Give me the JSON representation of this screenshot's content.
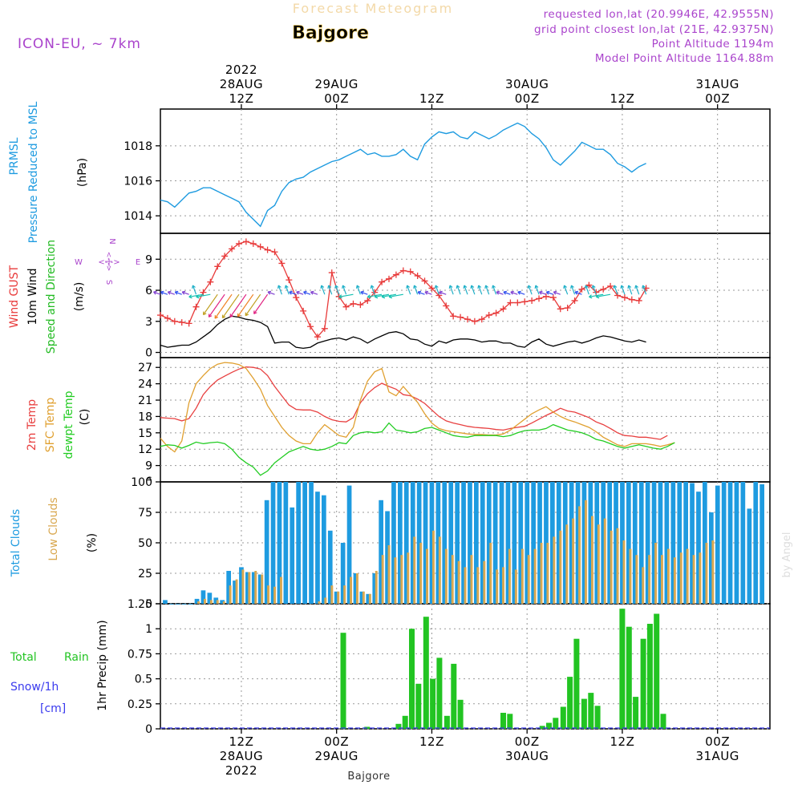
{
  "header": {
    "product": "Forecast Meteogram",
    "location": "Bajgore",
    "model": "ICON-EU, ~ 7km",
    "requested": "requested lon,lat (20.9946E, 42.9555N)",
    "grid_point": "grid point closest lon,lat (21E, 42.9375N)",
    "point_altitude": "Point Altitude 1194m",
    "model_altitude": "Model Point Altitude 1164.88m",
    "credit": "by Angel",
    "footer_location": "Bajgore"
  },
  "colors": {
    "pressure": "#1e9be0",
    "gust": "#e83a3a",
    "wind": "#000000",
    "direction": "#22bb22",
    "t2m": "#e84040",
    "sfc": "#e0a030",
    "dewpt": "#22cc22",
    "total_cloud": "#1e9be0",
    "low_cloud": "#d9a850",
    "rain": "#22c422",
    "snow": "#3a3aee",
    "compass": "#aa44cc",
    "info": "#aa44cc"
  },
  "panel_labels": {
    "prmsl": [
      "PRMSL",
      "Pressure Reduced to MSL",
      "(hPa)"
    ],
    "wind": [
      "Wind GUST",
      "10m Wind",
      "Speed and Direction",
      "(m/s)"
    ],
    "temp": [
      "2m Temp",
      "SFC Temp",
      "dewpt Temp",
      "(C)"
    ],
    "cloud": [
      "Total Clouds",
      "Low Clouds",
      "(%)"
    ],
    "precip_left": [
      "Total",
      "Rain",
      "Snow/1h",
      "[cm]"
    ],
    "precip_axis": "1hr Precip (mm)"
  },
  "compass": {
    "n": "N",
    "s": "S",
    "w": "W",
    "e": "E",
    "arrow": "<-|->"
  },
  "chart_data": {
    "type": "line",
    "x_unit": "hours since 2022-08-28 00Z",
    "x_range": [
      3.5,
      67.5
    ],
    "top_axis": [
      {
        "x": 12,
        "lines": [
          "2022",
          "28AUG",
          "12Z"
        ]
      },
      {
        "x": 22,
        "lines": [
          "29AUG",
          "00Z"
        ]
      },
      {
        "x": 32,
        "lines": [
          "12Z"
        ]
      },
      {
        "x": 42,
        "lines": [
          "30AUG",
          "00Z"
        ]
      },
      {
        "x": 52,
        "lines": [
          "12Z"
        ]
      },
      {
        "x": 62,
        "lines": [
          "31AUG",
          "00Z"
        ]
      }
    ],
    "bottom_axis": [
      {
        "x": 12,
        "lines": [
          "12Z",
          "28AUG",
          "2022"
        ]
      },
      {
        "x": 22,
        "lines": [
          "00Z",
          "29AUG"
        ]
      },
      {
        "x": 32,
        "lines": [
          "12Z"
        ]
      },
      {
        "x": 42,
        "lines": [
          "00Z",
          "30AUG"
        ]
      },
      {
        "x": 52,
        "lines": [
          "12Z"
        ]
      },
      {
        "x": 62,
        "lines": [
          "00Z",
          "31AUG"
        ]
      }
    ],
    "panels": {
      "prmsl": {
        "ylim": [
          1013,
          1020.1
        ],
        "yticks": [
          1014,
          1016,
          1018
        ],
        "series": [
          {
            "key": "pressure",
            "x_start": 3.5,
            "step": 0.75,
            "values": [
              1014.9,
              1014.8,
              1014.5,
              1014.9,
              1015.3,
              1015.4,
              1015.6,
              1015.6,
              1015.4,
              1015.2,
              1015.0,
              1014.8,
              1014.2,
              1013.8,
              1013.4,
              1014.3,
              1014.6,
              1015.4,
              1015.9,
              1016.1,
              1016.2,
              1016.5,
              1016.7,
              1016.9,
              1017.1,
              1017.2,
              1017.4,
              1017.6,
              1017.8,
              1017.5,
              1017.6,
              1017.4,
              1017.4,
              1017.5,
              1017.8,
              1017.4,
              1017.2,
              1018.1,
              1018.5,
              1018.8,
              1018.7,
              1018.8,
              1018.5,
              1018.4,
              1018.8,
              1018.6,
              1018.4,
              1018.6,
              1018.9,
              1019.1,
              1019.3,
              1019.1,
              1018.7,
              1018.4,
              1017.9,
              1017.2,
              1016.9,
              1017.3,
              1017.7,
              1018.2,
              1018.0,
              1017.8,
              1017.8,
              1017.5,
              1017.0,
              1016.8,
              1016.5,
              1016.8,
              1017.0
            ]
          }
        ]
      },
      "wind": {
        "ylim": [
          -0.5,
          11.5
        ],
        "yticks": [
          0,
          3,
          6,
          9
        ],
        "gust": {
          "x_start": 3.5,
          "step": 0.75,
          "values": [
            3.6,
            3.3,
            3.0,
            2.9,
            2.8,
            4.4,
            5.8,
            6.8,
            8.3,
            9.3,
            10.0,
            10.5,
            10.7,
            10.5,
            10.2,
            9.9,
            9.7,
            8.6,
            7.0,
            5.3,
            4.0,
            2.5,
            1.5,
            2.3,
            7.7,
            5.4,
            4.4,
            4.7,
            4.6,
            5.0,
            5.8,
            6.8,
            7.1,
            7.5,
            7.9,
            7.8,
            7.4,
            6.9,
            6.2,
            5.5,
            4.5,
            3.5,
            3.4,
            3.2,
            3.0,
            3.2,
            3.6,
            3.8,
            4.2,
            4.8,
            4.8,
            4.9,
            5.0,
            5.2,
            5.4,
            5.3,
            4.2,
            4.3,
            5.0,
            6.1,
            6.5,
            5.8,
            6.1,
            6.4,
            5.5,
            5.3,
            5.1,
            5.0,
            6.2
          ]
        },
        "wind": {
          "x_start": 3.5,
          "step": 0.75,
          "values": [
            0.7,
            0.5,
            0.6,
            0.7,
            0.7,
            1.0,
            1.5,
            2.0,
            2.7,
            3.2,
            3.5,
            3.4,
            3.2,
            3.1,
            2.9,
            2.5,
            0.9,
            1.0,
            1.0,
            0.5,
            0.4,
            0.5,
            0.9,
            1.1,
            1.3,
            1.4,
            1.2,
            1.5,
            1.3,
            0.9,
            1.3,
            1.6,
            1.9,
            2.0,
            1.8,
            1.3,
            1.2,
            0.8,
            0.6,
            1.1,
            0.9,
            1.2,
            1.3,
            1.3,
            1.2,
            1.0,
            1.1,
            1.1,
            0.9,
            0.9,
            0.6,
            0.5,
            1.0,
            1.3,
            0.8,
            0.6,
            0.8,
            1.0,
            1.1,
            0.9,
            1.1,
            1.4,
            1.6,
            1.5,
            1.3,
            1.1,
            1.0,
            1.2,
            1.0
          ]
        },
        "arrows_y": 5.6
      },
      "temp": {
        "ylim": [
          6,
          28.8
        ],
        "yticks": [
          9,
          12,
          15,
          18,
          21,
          24,
          27
        ],
        "series": [
          {
            "key": "t2m",
            "x_start": 3.5,
            "step": 0.75,
            "values": [
              17.8,
              17.7,
              17.6,
              17.2,
              17.6,
              19.5,
              22.0,
              23.5,
              24.7,
              25.4,
              26.1,
              26.7,
              27.1,
              27.0,
              26.7,
              25.5,
              23.5,
              21.8,
              20.1,
              19.3,
              19.2,
              19.2,
              18.8,
              18.0,
              17.4,
              17.1,
              17.0,
              17.8,
              20.5,
              22.2,
              23.3,
              24.1,
              23.5,
              23.0,
              22.0,
              21.8,
              21.2,
              20.4,
              19.2,
              18.0,
              17.2,
              16.8,
              16.5,
              16.2,
              16.0,
              15.9,
              15.8,
              15.6,
              15.5,
              15.8,
              16.0,
              16.2,
              16.8,
              17.5,
              18.2,
              18.8,
              19.5,
              19.0,
              18.8,
              18.3,
              17.8,
              17.0,
              16.5,
              15.8,
              15.0,
              14.5,
              14.4,
              14.2,
              14.2,
              14.0,
              13.8,
              14.5
            ]
          },
          {
            "key": "sfc",
            "x_start": 3.5,
            "step": 0.75,
            "values": [
              14.0,
              12.5,
              11.5,
              13.5,
              20.5,
              24.0,
              25.5,
              26.8,
              27.6,
              27.9,
              27.8,
              27.5,
              26.8,
              25.0,
              23.0,
              20.0,
              18.0,
              16.0,
              14.5,
              13.5,
              13.0,
              13.0,
              15.0,
              16.5,
              15.5,
              14.5,
              14.2,
              16.0,
              21.0,
              24.5,
              26.2,
              26.8,
              22.5,
              21.8,
              23.5,
              22.0,
              20.6,
              18.5,
              16.8,
              15.8,
              15.4,
              15.2,
              15.0,
              14.8,
              14.7,
              14.7,
              14.6,
              14.6,
              14.8,
              15.5,
              16.5,
              17.5,
              18.5,
              19.2,
              19.8,
              18.8,
              18.0,
              17.4,
              17.0,
              16.5,
              16.0,
              15.2,
              14.2,
              13.5,
              12.8,
              12.5,
              13.0,
              13.0,
              13.0,
              12.8,
              12.5,
              12.8,
              13.2
            ]
          },
          {
            "key": "dewpt",
            "x_start": 3.5,
            "step": 0.75,
            "values": [
              12.5,
              12.8,
              12.7,
              12.2,
              12.7,
              13.3,
              13.0,
              13.2,
              13.3,
              13.0,
              12.0,
              10.5,
              9.5,
              8.7,
              7.2,
              8.0,
              9.5,
              10.5,
              11.5,
              12.0,
              12.5,
              12.0,
              11.8,
              12.0,
              12.5,
              13.2,
              13.0,
              14.5,
              15.0,
              15.2,
              15.0,
              15.2,
              16.8,
              15.5,
              15.3,
              15.0,
              15.2,
              15.8,
              16.0,
              15.5,
              15.0,
              14.5,
              14.3,
              14.2,
              14.5,
              14.5,
              14.5,
              14.5,
              14.3,
              14.5,
              15.0,
              15.4,
              15.5,
              15.5,
              15.8,
              16.5,
              16.0,
              15.5,
              15.3,
              15.0,
              14.5,
              13.8,
              13.5,
              13.0,
              12.5,
              12.2,
              12.5,
              12.8,
              12.5,
              12.2,
              12.0,
              12.5,
              13.2
            ]
          }
        ]
      },
      "cloud": {
        "ylim": [
          0,
          100
        ],
        "yticks": [
          0,
          25,
          50,
          75,
          100
        ],
        "x_start": 4,
        "step": 0.6667,
        "total": [
          3,
          0,
          0,
          0,
          0,
          4,
          11,
          9,
          5,
          3,
          27,
          19,
          30,
          26,
          26,
          24,
          85,
          100,
          100,
          100,
          79,
          100,
          100,
          100,
          92,
          89,
          60,
          10,
          50,
          97,
          25,
          10,
          8,
          25,
          85,
          76,
          100,
          100,
          100,
          100,
          100,
          100,
          100,
          100,
          100,
          100,
          100,
          100,
          100,
          100,
          100,
          100,
          100,
          100,
          100,
          100,
          100,
          100,
          100,
          100,
          100,
          100,
          100,
          100,
          100,
          100,
          100,
          100,
          100,
          100,
          100,
          100,
          100,
          100,
          100,
          100,
          100,
          100,
          100,
          100,
          100,
          100,
          100,
          99,
          92,
          100,
          75,
          97,
          100,
          100,
          100,
          100,
          78,
          100,
          98
        ],
        "low": [
          0,
          0,
          0,
          0,
          0,
          2,
          4,
          3,
          3,
          2,
          15,
          20,
          28,
          26,
          27,
          24,
          15,
          14,
          22,
          0,
          0,
          0,
          0,
          0,
          2,
          5,
          15,
          10,
          15,
          22,
          25,
          10,
          8,
          27,
          40,
          48,
          38,
          40,
          42,
          55,
          50,
          45,
          60,
          55,
          45,
          40,
          35,
          30,
          40,
          30,
          35,
          50,
          28,
          30,
          45,
          28,
          45,
          40,
          45,
          50,
          50,
          55,
          60,
          65,
          70,
          80,
          85,
          72,
          65,
          70,
          60,
          62,
          52,
          45,
          40,
          30,
          40,
          50,
          40,
          45,
          38,
          42,
          45,
          40,
          42,
          50,
          52
        ]
      },
      "precip": {
        "ylim": [
          0,
          1.25
        ],
        "yticks": [
          0,
          0.25,
          0.5,
          0.75,
          1,
          1.25
        ],
        "ytick_labels": [
          "0",
          "0.25",
          "0.5",
          "0.75",
          "1",
          "1.25"
        ],
        "bars": [
          {
            "x": 22.7,
            "v": 0.96
          },
          {
            "x": 25.2,
            "v": 0.02
          },
          {
            "x": 28.5,
            "v": 0.05
          },
          {
            "x": 29.2,
            "v": 0.13
          },
          {
            "x": 29.9,
            "v": 1.0
          },
          {
            "x": 30.6,
            "v": 0.45
          },
          {
            "x": 31.4,
            "v": 1.12
          },
          {
            "x": 32.1,
            "v": 0.5
          },
          {
            "x": 32.8,
            "v": 0.71
          },
          {
            "x": 33.6,
            "v": 0.13
          },
          {
            "x": 34.3,
            "v": 0.65
          },
          {
            "x": 35.0,
            "v": 0.29
          },
          {
            "x": 39.5,
            "v": 0.16
          },
          {
            "x": 40.2,
            "v": 0.15
          },
          {
            "x": 43.6,
            "v": 0.03
          },
          {
            "x": 44.3,
            "v": 0.06
          },
          {
            "x": 45.0,
            "v": 0.11
          },
          {
            "x": 45.8,
            "v": 0.22
          },
          {
            "x": 46.5,
            "v": 0.52
          },
          {
            "x": 47.2,
            "v": 0.9
          },
          {
            "x": 48.0,
            "v": 0.3
          },
          {
            "x": 48.7,
            "v": 0.36
          },
          {
            "x": 49.4,
            "v": 0.23
          },
          {
            "x": 52.0,
            "v": 1.2
          },
          {
            "x": 52.7,
            "v": 1.02
          },
          {
            "x": 53.4,
            "v": 0.32
          },
          {
            "x": 54.2,
            "v": 0.9
          },
          {
            "x": 54.9,
            "v": 1.05
          },
          {
            "x": 55.6,
            "v": 1.15
          },
          {
            "x": 56.3,
            "v": 0.15
          }
        ]
      }
    }
  }
}
